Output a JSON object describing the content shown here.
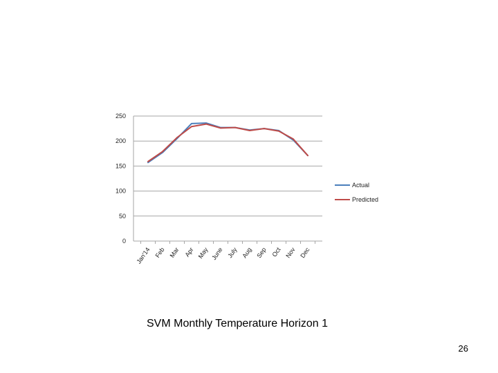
{
  "chart_data": {
    "type": "line",
    "title": "",
    "xlabel": "",
    "ylabel": "",
    "categories": [
      "Jan'14",
      "Feb",
      "Mar",
      "Apr",
      "May",
      "June",
      "July",
      "Aug",
      "Sep",
      "Oct",
      "Nov",
      "Dec"
    ],
    "ylim": [
      0,
      250
    ],
    "yticks": [
      0,
      50,
      100,
      150,
      200,
      250
    ],
    "grid": true,
    "legend_position": "right",
    "series": [
      {
        "name": "Actual",
        "color": "#4a7ebb",
        "values": [
          157,
          177,
          205,
          235,
          236,
          227,
          227,
          222,
          225,
          221,
          202,
          171
        ]
      },
      {
        "name": "Predicted",
        "color": "#be4b48",
        "values": [
          159,
          179,
          207,
          229,
          234,
          226,
          227,
          221,
          225,
          220,
          204,
          171
        ]
      }
    ]
  },
  "caption": "SVM Monthly Temperature Horizon 1",
  "page_number": "26"
}
